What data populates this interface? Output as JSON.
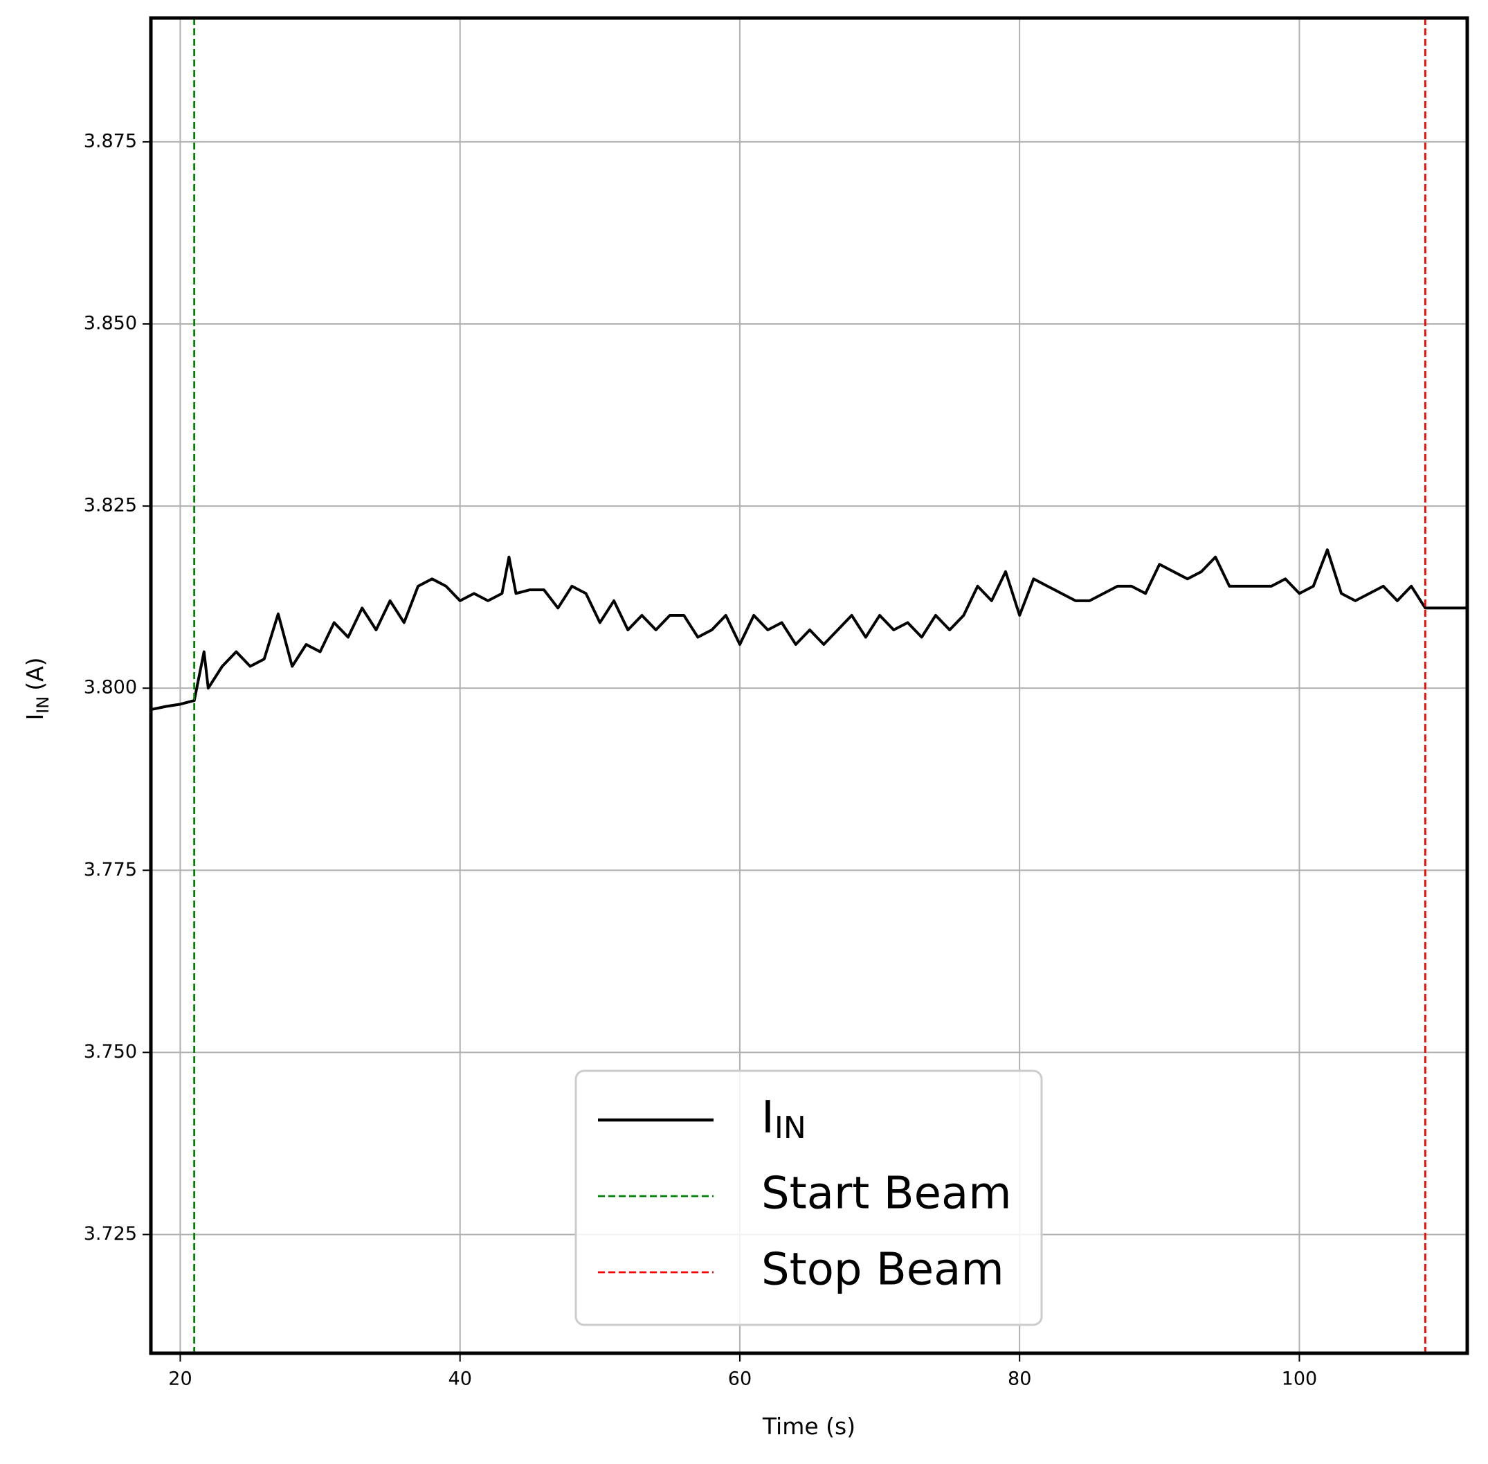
{
  "chart_data": {
    "type": "line",
    "xlabel": "Time (s)",
    "ylabel": {
      "main": "I",
      "sub": "IN",
      "unit": "(A)"
    },
    "x": [
      18,
      19,
      20,
      21,
      21.7,
      22,
      23,
      24,
      25,
      26,
      27,
      28,
      29,
      30,
      31,
      32,
      33,
      34,
      35,
      36,
      37,
      38,
      39,
      40,
      41,
      42,
      43,
      43.5,
      44,
      45,
      46,
      47,
      48,
      49,
      50,
      51,
      52,
      53,
      54,
      55,
      56,
      57,
      58,
      59,
      60,
      61,
      62,
      63,
      64,
      65,
      66,
      67,
      68,
      69,
      70,
      71,
      72,
      73,
      74,
      75,
      76,
      77,
      78,
      79,
      80,
      81,
      82,
      83,
      84,
      85,
      86,
      87,
      88,
      89,
      90,
      91,
      92,
      93,
      94,
      95,
      96,
      97,
      98,
      99,
      100,
      101,
      102,
      103,
      104,
      105,
      106,
      107,
      108,
      109,
      110,
      111,
      112
    ],
    "series": [
      {
        "name": "I",
        "name_sub": "IN",
        "color": "#000000",
        "values": [
          3.7971,
          3.7975,
          3.7978,
          3.7983,
          3.805,
          3.8,
          3.803,
          3.805,
          3.803,
          3.804,
          3.8102,
          3.803,
          3.806,
          3.805,
          3.809,
          3.807,
          3.811,
          3.808,
          3.812,
          3.809,
          3.814,
          3.815,
          3.814,
          3.812,
          3.813,
          3.812,
          3.813,
          3.818,
          3.813,
          3.8135,
          3.8135,
          3.811,
          3.814,
          3.813,
          3.809,
          3.812,
          3.808,
          3.81,
          3.808,
          3.81,
          3.81,
          3.807,
          3.808,
          3.81,
          3.806,
          3.81,
          3.808,
          3.809,
          3.806,
          3.808,
          3.806,
          3.808,
          3.81,
          3.807,
          3.81,
          3.808,
          3.809,
          3.807,
          3.81,
          3.808,
          3.81,
          3.814,
          3.812,
          3.816,
          3.81,
          3.815,
          3.814,
          3.813,
          3.812,
          3.812,
          3.813,
          3.814,
          3.814,
          3.813,
          3.817,
          3.816,
          3.815,
          3.816,
          3.818,
          3.814,
          3.814,
          3.814,
          3.814,
          3.815,
          3.813,
          3.814,
          3.819,
          3.813,
          3.812,
          3.813,
          3.814,
          3.812,
          3.814,
          3.811,
          3.811,
          3.811,
          3.811
        ]
      }
    ],
    "vlines": [
      {
        "name": "Start Beam",
        "x": 21,
        "color": "#008000"
      },
      {
        "name": "Stop Beam",
        "x": 109,
        "color": "#ff0000"
      }
    ],
    "xlim": [
      17.9,
      112
    ],
    "ylim": [
      3.7087,
      3.892
    ],
    "xticks": [
      20,
      40,
      60,
      80,
      100
    ],
    "yticks": [
      {
        "value": 3.725,
        "label": "3.725"
      },
      {
        "value": 3.75,
        "label": "3.750"
      },
      3.775,
      {
        "value": 3.8,
        "label": "3.800"
      },
      3.825,
      {
        "value": 3.85,
        "label": "3.850"
      },
      3.875
    ],
    "grid": true,
    "legend": "lower center"
  }
}
